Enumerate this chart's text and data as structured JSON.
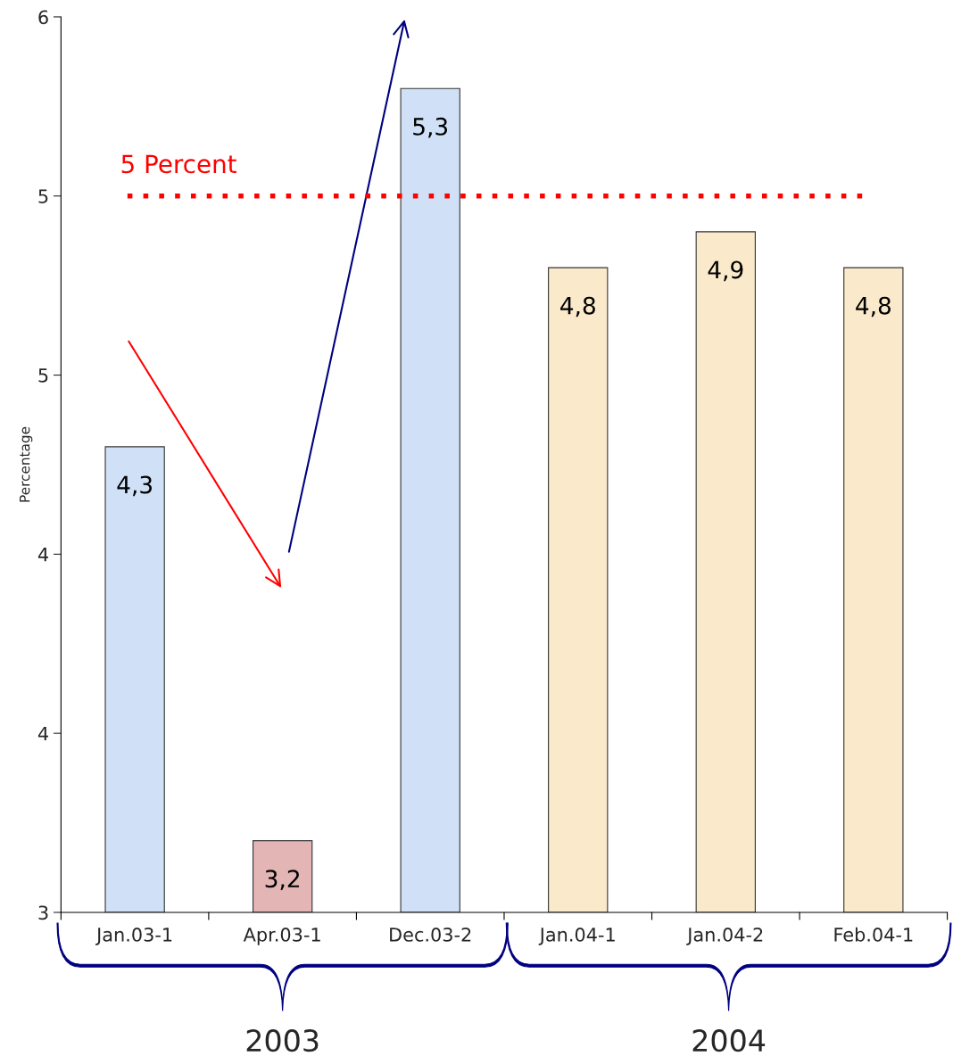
{
  "chart_data": {
    "type": "bar",
    "ylabel": "Percentage",
    "categories": [
      "Jan.03-1",
      "Apr.03-1",
      "Dec.03-2",
      "Jan.04-1",
      "Jan.04-2",
      "Feb.04-1"
    ],
    "values": [
      4.3,
      3.2,
      5.3,
      4.8,
      4.9,
      4.8
    ],
    "colors": [
      "#cfe0f7",
      "#e3b5b5",
      "#cfe0f7",
      "#fbe9cc",
      "#fbe9cc",
      "#fbe9cc"
    ],
    "value_labels": [
      "4,3",
      "3,2",
      "5,3",
      "4,8",
      "4,9",
      "4,8"
    ],
    "ylim": [
      3,
      5.5
    ],
    "yticks": [
      3,
      {
        "value": 3.5,
        "label": "4"
      },
      4,
      {
        "value": 4.5,
        "label": "5"
      },
      5,
      {
        "value": 5.5,
        "label": "6"
      }
    ],
    "ref_lines": [
      {
        "axis": "y",
        "value": 5,
        "label": "5 Percent",
        "color": "#ff0000",
        "line_style": "dotted"
      }
    ],
    "annotations": [
      "2003",
      "2004"
    ],
    "grid": false,
    "legend": false
  }
}
